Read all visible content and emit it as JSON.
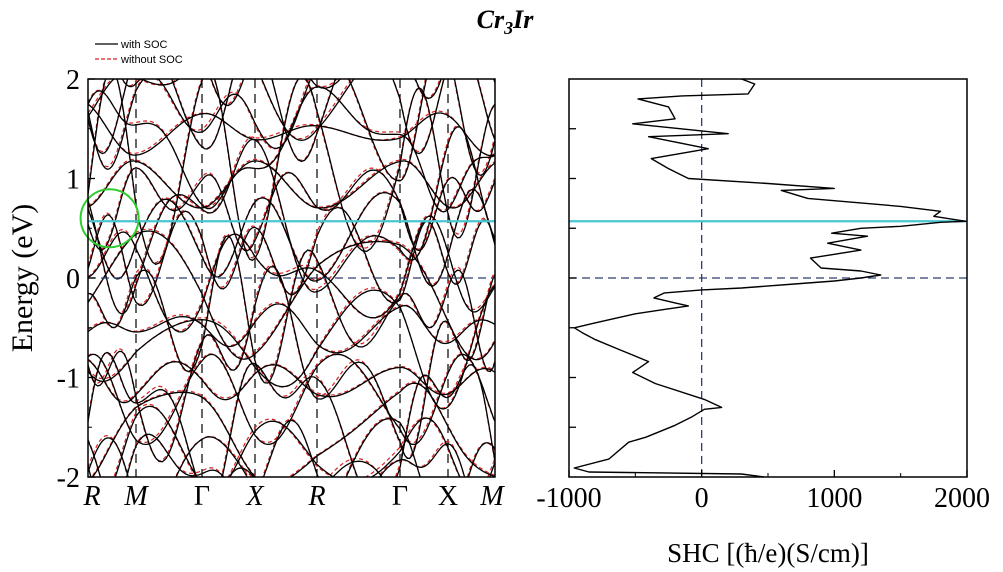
{
  "title": {
    "base": "Cr",
    "sub": "3",
    "tail": "Ir"
  },
  "colors": {
    "with_soc": "#000000",
    "without_soc": "#d62020",
    "fermi": "#2b3f6e",
    "highlight": "#49c6d1",
    "circle": "#2ecc2e"
  },
  "chart_data": [
    {
      "type": "line",
      "panel": "band-structure",
      "ylabel": "Energy (eV)",
      "ylim": [
        -2,
        2
      ],
      "yticks": [
        -2,
        -1,
        0,
        1,
        2
      ],
      "ytick_labels": [
        "-2",
        "-1",
        "0",
        "1",
        "2"
      ],
      "kpath": [
        {
          "label": "R",
          "italic": true
        },
        {
          "label": "M",
          "italic": true
        },
        {
          "label": "Γ",
          "italic": false
        },
        {
          "label": "X",
          "italic": true
        },
        {
          "label": "R",
          "italic": true
        },
        {
          "label": "Γ",
          "italic": false
        },
        {
          "label": "X",
          "italic": false
        },
        {
          "label": "M",
          "italic": true
        }
      ],
      "legend": {
        "position": "top-left",
        "entries": [
          "with SOC",
          "without SOC"
        ]
      },
      "fermi_level": 0,
      "highlight_energy": 0.57,
      "circle_marker": {
        "k_index": 0.45,
        "energy": 0.6
      },
      "series_style": [
        {
          "name": "with SOC",
          "dash": "solid"
        },
        {
          "name": "without SOC",
          "dash": "dashed"
        }
      ]
    },
    {
      "type": "line",
      "panel": "shc",
      "xlabel": "SHC [(ħ/e)(S/cm)]",
      "xlim": [
        -1000,
        2000
      ],
      "xticks": [
        -1000,
        0,
        1000,
        2000
      ],
      "xtick_labels": [
        "-1000",
        "0",
        "1000",
        "2000"
      ],
      "ylim": [
        -2,
        2
      ],
      "fermi_level": 0,
      "highlight_energy": 0.57,
      "series": [
        {
          "name": "SHC",
          "points": [
            [
              470,
              -2.0
            ],
            [
              300,
              -1.97
            ],
            [
              -850,
              -1.95
            ],
            [
              -960,
              -1.91
            ],
            [
              -700,
              -1.82
            ],
            [
              -550,
              -1.65
            ],
            [
              -420,
              -1.6
            ],
            [
              -200,
              -1.48
            ],
            [
              -80,
              -1.4
            ],
            [
              20,
              -1.32
            ],
            [
              150,
              -1.3
            ],
            [
              20,
              -1.22
            ],
            [
              -350,
              -1.06
            ],
            [
              -520,
              -0.95
            ],
            [
              -400,
              -0.84
            ],
            [
              -620,
              -0.72
            ],
            [
              -800,
              -0.62
            ],
            [
              -900,
              -0.55
            ],
            [
              -960,
              -0.5
            ],
            [
              -800,
              -0.45
            ],
            [
              -500,
              -0.36
            ],
            [
              -300,
              -0.32
            ],
            [
              -100,
              -0.28
            ],
            [
              -200,
              -0.25
            ],
            [
              -360,
              -0.2
            ],
            [
              -280,
              -0.15
            ],
            [
              0,
              -0.12
            ],
            [
              300,
              -0.1
            ],
            [
              700,
              -0.06
            ],
            [
              1000,
              -0.03
            ],
            [
              1200,
              0.0
            ],
            [
              1350,
              0.03
            ],
            [
              1200,
              0.07
            ],
            [
              900,
              0.1
            ],
            [
              820,
              0.2
            ],
            [
              1200,
              0.28
            ],
            [
              950,
              0.35
            ],
            [
              1250,
              0.42
            ],
            [
              980,
              0.45
            ],
            [
              1200,
              0.5
            ],
            [
              1500,
              0.52
            ],
            [
              1800,
              0.56
            ],
            [
              1990,
              0.57
            ],
            [
              1750,
              0.62
            ],
            [
              1800,
              0.67
            ],
            [
              1500,
              0.72
            ],
            [
              800,
              0.8
            ],
            [
              600,
              0.88
            ],
            [
              1000,
              0.9
            ],
            [
              500,
              0.95
            ],
            [
              -100,
              1.0
            ],
            [
              -250,
              1.1
            ],
            [
              -380,
              1.2
            ],
            [
              50,
              1.3
            ],
            [
              -400,
              1.42
            ],
            [
              200,
              1.45
            ],
            [
              -520,
              1.55
            ],
            [
              -200,
              1.6
            ],
            [
              -250,
              1.72
            ],
            [
              -480,
              1.8
            ],
            [
              -150,
              1.83
            ],
            [
              350,
              1.85
            ],
            [
              400,
              1.95
            ],
            [
              300,
              2.0
            ]
          ]
        }
      ]
    }
  ]
}
